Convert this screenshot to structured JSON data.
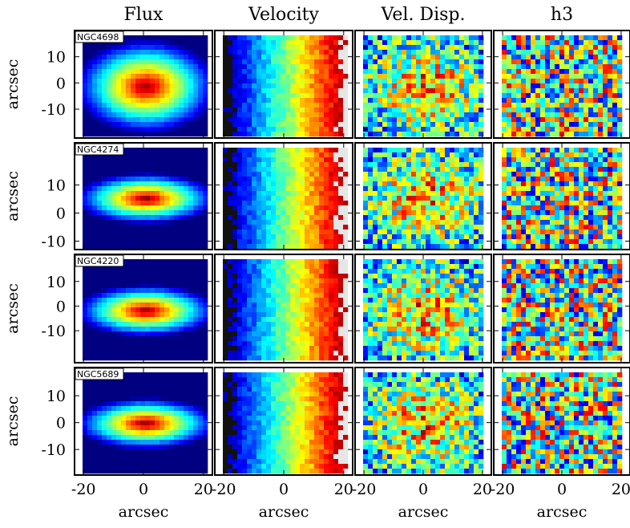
{
  "chart_data": {
    "type": "map-grid",
    "columns": [
      "Flux",
      "Velocity",
      "Vel. Disp.",
      "h3"
    ],
    "xlabel": "arcsec",
    "ylabel": "arcsec",
    "xlim": [
      -23,
      23
    ],
    "xticks": [
      -20,
      0,
      20
    ],
    "rows": [
      {
        "galaxy": "NGC4698",
        "ylim": [
          -21,
          20
        ],
        "yticks": [
          10,
          0,
          -10
        ]
      },
      {
        "galaxy": "NGC4274",
        "ylim": [
          -13,
          25
        ],
        "yticks": [
          10,
          0,
          -10
        ]
      },
      {
        "galaxy": "NGC4220",
        "ylim": [
          -23,
          21
        ],
        "yticks": [
          10,
          0,
          -10
        ]
      },
      {
        "galaxy": "NGC5689",
        "ylim": [
          -19.5,
          20.5
        ],
        "yticks": [
          10,
          0,
          -10
        ]
      }
    ]
  }
}
